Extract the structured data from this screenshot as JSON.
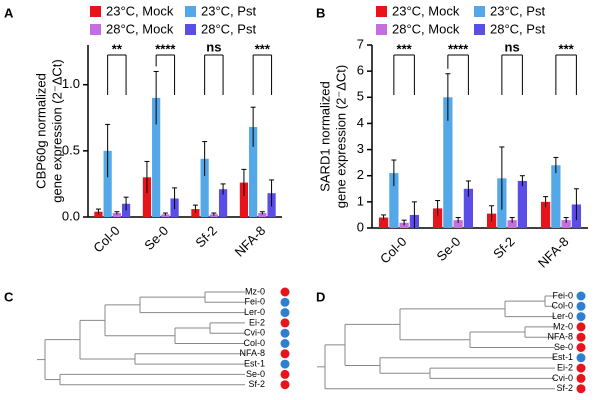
{
  "panels": [
    "A",
    "B",
    "C",
    "D"
  ],
  "chart_data": [
    {
      "type": "bar",
      "y_label": [
        "CBP60g normalized",
        "gene  expression (2⁻ΔCt)"
      ],
      "categories": [
        "Col-0",
        "Se-0",
        "Sf-2",
        "NFA-8"
      ],
      "series": [
        {
          "name": "23°C, Mock",
          "color": "#e8141c",
          "values": [
            0.04,
            0.3,
            0.06,
            0.26
          ],
          "errors": [
            0.02,
            0.12,
            0.03,
            0.1
          ]
        },
        {
          "name": "23°C, Pst",
          "color": "#55a8e8",
          "values": [
            0.5,
            0.9,
            0.44,
            0.68
          ],
          "errors": [
            0.2,
            0.2,
            0.13,
            0.15
          ]
        },
        {
          "name": "28°C, Mock",
          "color": "#c46ee0",
          "values": [
            0.03,
            0.02,
            0.02,
            0.03
          ],
          "errors": [
            0.01,
            0.01,
            0.01,
            0.01
          ]
        },
        {
          "name": "28°C, Pst",
          "color": "#5a4ee6",
          "values": [
            0.1,
            0.14,
            0.21,
            0.18
          ],
          "errors": [
            0.05,
            0.08,
            0.04,
            0.1
          ]
        }
      ],
      "significance": [
        "**",
        "****",
        "ns",
        "***"
      ],
      "ylim": [
        0,
        1.3
      ],
      "yticks": [
        {
          "value": 0,
          "label": "0.0"
        },
        {
          "value": 0.5,
          "label": "0.5"
        },
        {
          "value": 1,
          "label": "1.0"
        }
      ]
    },
    {
      "type": "bar",
      "y_label": [
        "SARD1 normalized",
        "gene  expression (2⁻ΔCt)"
      ],
      "categories": [
        "Col-0",
        "Se-0",
        "Sf-2",
        "NFA-8"
      ],
      "series": [
        {
          "name": "23°C, Mock",
          "color": "#e8141c",
          "values": [
            0.4,
            0.75,
            0.55,
            1.0
          ],
          "errors": [
            0.1,
            0.3,
            0.3,
            0.2
          ]
        },
        {
          "name": "23°C, Pst",
          "color": "#55a8e8",
          "values": [
            2.1,
            5.0,
            1.9,
            2.4
          ],
          "errors": [
            0.5,
            0.9,
            1.2,
            0.3
          ]
        },
        {
          "name": "28°C, Mock",
          "color": "#c46ee0",
          "values": [
            0.2,
            0.3,
            0.3,
            0.3
          ],
          "errors": [
            0.1,
            0.1,
            0.1,
            0.1
          ]
        },
        {
          "name": "28°C, Pst",
          "color": "#5a4ee6",
          "values": [
            0.5,
            1.5,
            1.8,
            0.9
          ],
          "errors": [
            0.5,
            0.3,
            0.2,
            0.6
          ]
        }
      ],
      "significance": [
        "***",
        "****",
        "ns",
        "***"
      ],
      "ylim": [
        0,
        7
      ],
      "yticks": [
        0,
        1,
        2,
        3,
        4,
        5,
        6,
        7
      ]
    }
  ],
  "dendrograms": [
    {
      "leaves": [
        {
          "label": "Mz-0",
          "color": "#e8141c"
        },
        {
          "label": "Fei-0",
          "color": "#2f7fd0"
        },
        {
          "label": "Ler-0",
          "color": "#2f7fd0"
        },
        {
          "label": "Ei-2",
          "color": "#e8141c"
        },
        {
          "label": "Cvi-0",
          "color": "#2f7fd0"
        },
        {
          "label": "Col-0",
          "color": "#2f7fd0"
        },
        {
          "label": "NFA-8",
          "color": "#e8141c"
        },
        {
          "label": "Est-1",
          "color": "#2f7fd0"
        },
        {
          "label": "Se-0",
          "color": "#e8141c"
        },
        {
          "label": "Sf-2",
          "color": "#e8141c"
        }
      ]
    },
    {
      "leaves": [
        {
          "label": "Fei-0",
          "color": "#2f7fd0"
        },
        {
          "label": "Col-0",
          "color": "#2f7fd0"
        },
        {
          "label": "Ler-0",
          "color": "#2f7fd0"
        },
        {
          "label": "Mz-0",
          "color": "#e8141c"
        },
        {
          "label": "NFA-8",
          "color": "#e8141c"
        },
        {
          "label": "Se-0",
          "color": "#e8141c"
        },
        {
          "label": "Est-1",
          "color": "#2f7fd0"
        },
        {
          "label": "Ei-2",
          "color": "#e8141c"
        },
        {
          "label": "Cvi-0",
          "color": "#e8141c"
        },
        {
          "label": "Sf-2",
          "color": "#e8141c"
        }
      ]
    }
  ]
}
